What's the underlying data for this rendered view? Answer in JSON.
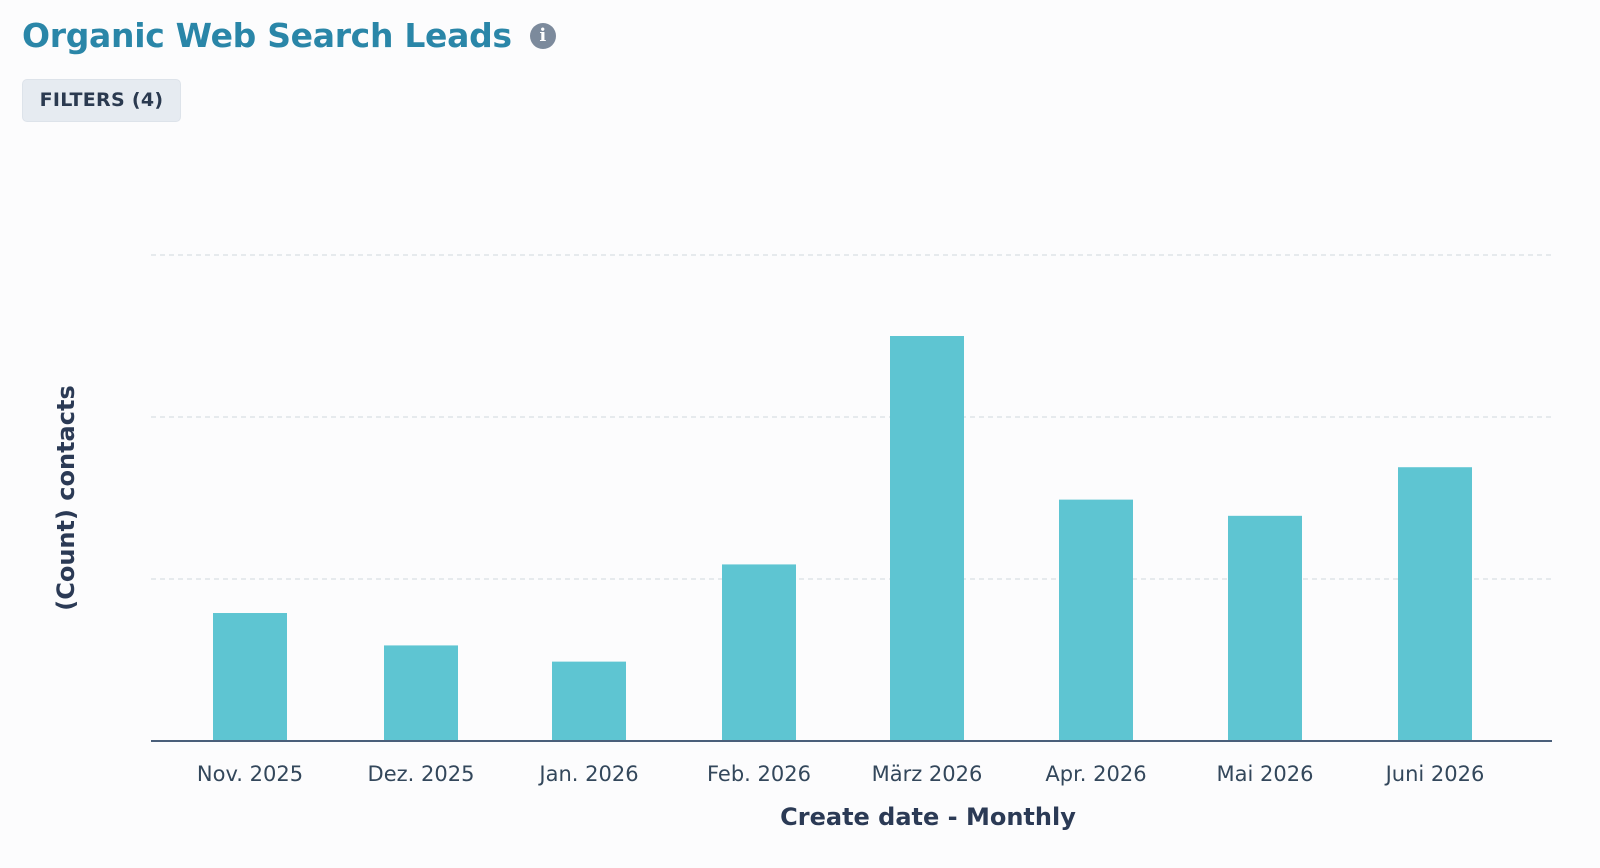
{
  "header": {
    "title": "Organic Web Search Leads",
    "info_icon": "info-icon"
  },
  "filters": {
    "label": "FILTERS (4)"
  },
  "colors": {
    "title": "#2a86a8",
    "bar": "#5ec5d2",
    "axis": "#4a5f7a",
    "grid": "#dfe3e8",
    "filters_bg": "#e6ebf1"
  },
  "chart_data": {
    "type": "bar",
    "categories": [
      "Nov. 2025",
      "Dez. 2025",
      "Jan. 2026",
      "Feb. 2026",
      "März 2026",
      "Apr. 2026",
      "Mai 2026",
      "Juni 2026"
    ],
    "values": [
      7.9,
      5.9,
      4.9,
      10.9,
      25,
      14.9,
      13.9,
      16.9
    ],
    "xlabel": "Create date - Monthly",
    "ylabel": "(Count) contacts",
    "ylim": [
      0,
      30
    ],
    "gridlines": [
      10,
      20,
      30
    ],
    "grid": true,
    "legend": "none"
  }
}
